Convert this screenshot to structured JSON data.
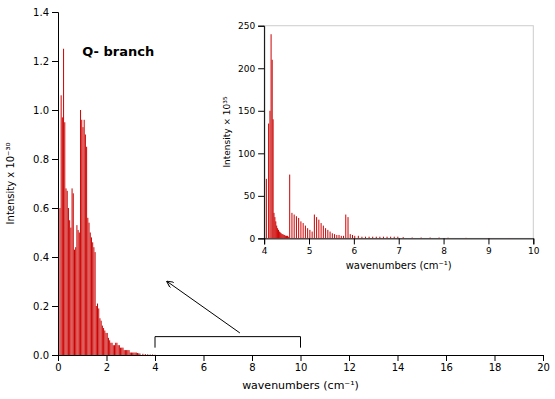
{
  "chart_data": [
    {
      "type": "stem",
      "title": "Q- branch",
      "xlabel": "wavenumbers (cm⁻¹)",
      "ylabel": "Intensity x 10⁻³⁰",
      "color": "#cc0000",
      "xlim": [
        0,
        20
      ],
      "ylim": [
        0,
        1.4
      ],
      "xticks": [
        0,
        2,
        4,
        6,
        8,
        10,
        12,
        14,
        16,
        18,
        20
      ],
      "yticks": [
        {
          "value": 0,
          "label": "0.0"
        },
        0.2,
        0.4,
        0.6,
        0.8,
        {
          "value": 1.0,
          "label": "1.0"
        },
        1.2,
        1.4
      ],
      "x": [
        0.08,
        0.13,
        0.18,
        0.23,
        0.28,
        0.33,
        0.38,
        0.43,
        0.48,
        0.53,
        0.58,
        0.63,
        0.68,
        0.73,
        0.78,
        0.83,
        0.88,
        0.93,
        0.98,
        1.03,
        1.08,
        1.13,
        1.18,
        1.23,
        1.28,
        1.33,
        1.38,
        1.43,
        1.48,
        1.53,
        1.58,
        1.63,
        1.68,
        1.73,
        1.78,
        1.83,
        1.88,
        1.93,
        1.98,
        2.03,
        2.08,
        2.13,
        2.18,
        2.23,
        2.28,
        2.33,
        2.38,
        2.43,
        2.48,
        2.53,
        2.58,
        2.63,
        2.68,
        2.73,
        2.78,
        2.83,
        2.88,
        2.93,
        2.98,
        3.03,
        3.08,
        3.13,
        3.18,
        3.23,
        3.28,
        3.33,
        3.38,
        3.5,
        3.6,
        3.7,
        3.8,
        3.9,
        4.0
      ],
      "values": [
        0.6,
        1.06,
        0.97,
        1.25,
        0.95,
        0.68,
        0.67,
        0.6,
        0.55,
        0.52,
        0.68,
        0.66,
        0.43,
        0.44,
        0.53,
        0.51,
        0.5,
        1.0,
        0.96,
        0.93,
        0.96,
        0.9,
        0.85,
        0.56,
        0.54,
        0.5,
        0.48,
        0.46,
        0.44,
        0.42,
        0.2,
        0.21,
        0.19,
        0.15,
        0.14,
        0.12,
        0.11,
        0.1,
        0.09,
        0.09,
        0.07,
        0.06,
        0.05,
        0.05,
        0.04,
        0.04,
        0.05,
        0.05,
        0.04,
        0.04,
        0.03,
        0.03,
        0.03,
        0.02,
        0.02,
        0.02,
        0.02,
        0.02,
        0.01,
        0.01,
        0.01,
        0.01,
        0.01,
        0.01,
        0.008,
        0.007,
        0.006,
        0.005,
        0.004,
        0.003,
        0.002,
        0.002,
        0.001
      ],
      "bracket": {
        "x": [
          4.0,
          10.0
        ],
        "y": [
          0.03,
          0.075
        ]
      },
      "arrow": {
        "x": [
          7.5,
          4.5
        ],
        "y": [
          0.09,
          0.3
        ]
      }
    },
    {
      "type": "stem",
      "xlabel": "wavenumbers (cm⁻¹)",
      "ylabel": "Intensity × 10³⁵",
      "color": "#cc0000",
      "xlim": [
        4,
        10
      ],
      "ylim": [
        0,
        250
      ],
      "xticks": [
        4,
        5,
        6,
        7,
        8,
        9,
        10
      ],
      "yticks": [
        0,
        50,
        100,
        150,
        200,
        250
      ],
      "x": [
        4.05,
        4.1,
        4.13,
        4.155,
        4.18,
        4.2,
        4.22,
        4.24,
        4.26,
        4.28,
        4.3,
        4.32,
        4.34,
        4.36,
        4.38,
        4.4,
        4.42,
        4.44,
        4.46,
        4.48,
        4.5,
        4.52,
        4.54,
        4.57,
        4.62,
        4.67,
        4.72,
        4.77,
        4.82,
        4.87,
        4.92,
        4.97,
        5.02,
        5.07,
        5.12,
        5.17,
        5.22,
        5.27,
        5.32,
        5.37,
        5.42,
        5.47,
        5.52,
        5.57,
        5.62,
        5.67,
        5.72,
        5.77,
        5.82,
        5.87,
        5.92,
        5.97,
        6.02,
        6.1,
        6.18,
        6.26,
        6.34,
        6.42,
        6.5,
        6.58,
        6.66,
        6.74,
        6.82,
        6.9,
        6.98,
        7.1,
        7.3,
        7.5,
        7.7,
        7.9,
        8.1,
        8.5,
        9.0,
        9.5,
        9.9
      ],
      "values": [
        70,
        135,
        150,
        240,
        210,
        140,
        30,
        25,
        20,
        15,
        12,
        10,
        8,
        7,
        6,
        5,
        5,
        4,
        4,
        3,
        3,
        3,
        2,
        75,
        30,
        28,
        26,
        24,
        20,
        18,
        15,
        12,
        10,
        8,
        28,
        25,
        22,
        18,
        15,
        12,
        10,
        8,
        6,
        5,
        4,
        4,
        3,
        3,
        28,
        25,
        5,
        4,
        3,
        3,
        2,
        2,
        2,
        2,
        2,
        2,
        2,
        2,
        2,
        2,
        2,
        1.5,
        1,
        1,
        1,
        1,
        0.8,
        0.6,
        0.4,
        0.3,
        0.2
      ]
    }
  ]
}
